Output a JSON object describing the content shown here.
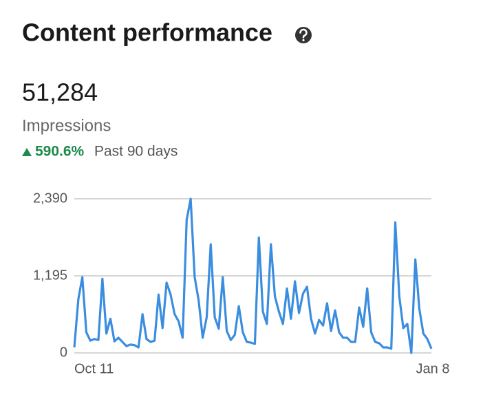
{
  "summary": {
    "value": "51,284",
    "metric": "Impressions",
    "change": "590.6%",
    "period": "Past 90 days"
  },
  "chart_data": {
    "type": "line",
    "title": "Content performance",
    "categories": [
      "Oct 11",
      null,
      null,
      null,
      null,
      null,
      null,
      null,
      null,
      null,
      null,
      null,
      null,
      null,
      null,
      null,
      null,
      null,
      null,
      null,
      null,
      null,
      null,
      null,
      null,
      null,
      null,
      null,
      null,
      null,
      null,
      null,
      null,
      null,
      null,
      null,
      null,
      null,
      null,
      null,
      null,
      null,
      null,
      null,
      null,
      null,
      null,
      null,
      null,
      null,
      null,
      null,
      null,
      null,
      null,
      null,
      null,
      null,
      null,
      null,
      null,
      null,
      null,
      null,
      null,
      null,
      null,
      null,
      null,
      null,
      null,
      null,
      null,
      null,
      null,
      null,
      null,
      null,
      null,
      null,
      null,
      null,
      null,
      null,
      null,
      null,
      null,
      null,
      null,
      "Jan 8"
    ],
    "series": [
      {
        "name": "Impressions",
        "color": "#3a8ddf",
        "values": [
          85,
          830,
          1175,
          320,
          190,
          215,
          200,
          1150,
          300,
          530,
          180,
          235,
          170,
          105,
          130,
          120,
          85,
          600,
          215,
          170,
          190,
          905,
          385,
          1090,
          905,
          600,
          490,
          235,
          2060,
          2390,
          1175,
          810,
          235,
          555,
          1685,
          555,
          375,
          1175,
          340,
          200,
          280,
          725,
          320,
          170,
          160,
          140,
          1790,
          640,
          450,
          1685,
          875,
          640,
          450,
          1000,
          530,
          1110,
          620,
          920,
          1025,
          530,
          300,
          510,
          425,
          770,
          340,
          660,
          320,
          235,
          235,
          170,
          170,
          705,
          405,
          1000,
          320,
          170,
          150,
          85,
          85,
          65,
          2025,
          875,
          385,
          450,
          0,
          1450,
          680,
          300,
          215,
          65
        ]
      }
    ],
    "ylim": [
      0,
      2390
    ],
    "yticks": [
      0,
      {
        "value": 1195,
        "label": "1,195"
      },
      {
        "value": 2390,
        "label": "2,390"
      }
    ],
    "grid": true
  }
}
